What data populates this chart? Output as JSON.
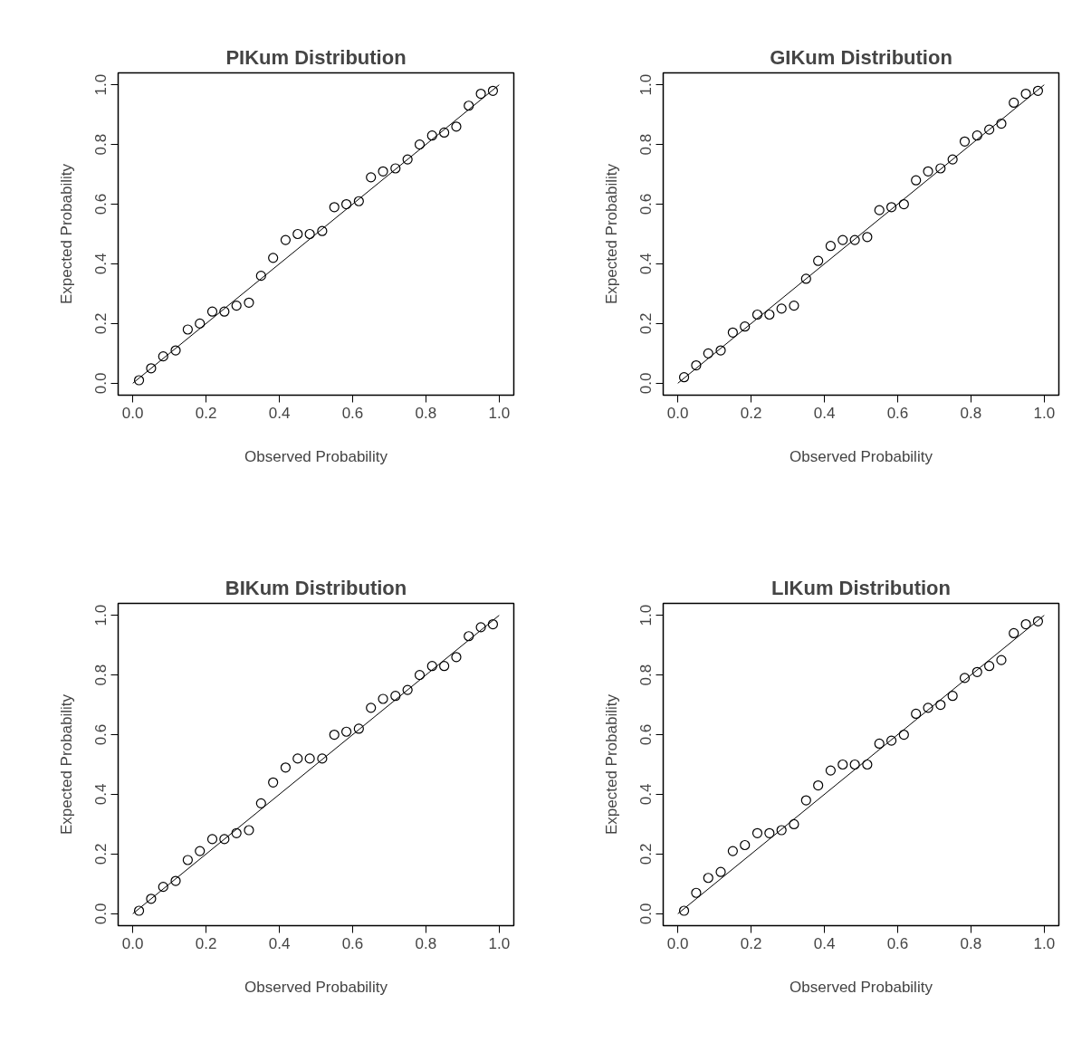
{
  "chart_data": [
    {
      "type": "scatter",
      "title": "PIKum Distribution",
      "xlabel": "Observed Probability",
      "ylabel": "Expected Probability",
      "marker": "circle",
      "xlim": [
        -0.04,
        1.04
      ],
      "ylim": [
        -0.04,
        1.04
      ],
      "xticks": [
        {
          "value": 0,
          "label": "0.0"
        },
        {
          "value": 0.2,
          "label": "0.2"
        },
        {
          "value": 0.4,
          "label": "0.4"
        },
        {
          "value": 0.6,
          "label": "0.6"
        },
        {
          "value": 0.8,
          "label": "0.8"
        },
        {
          "value": 1,
          "label": "1.0"
        }
      ],
      "yticks": [
        {
          "value": 0,
          "label": "0.0"
        },
        {
          "value": 0.2,
          "label": "0.2"
        },
        {
          "value": 0.4,
          "label": "0.4"
        },
        {
          "value": 0.6,
          "label": "0.6"
        },
        {
          "value": 0.8,
          "label": "0.8"
        },
        {
          "value": 1,
          "label": "1.0"
        }
      ],
      "x": [
        0.017,
        0.05,
        0.083,
        0.117,
        0.15,
        0.183,
        0.217,
        0.25,
        0.283,
        0.317,
        0.35,
        0.383,
        0.417,
        0.45,
        0.483,
        0.517,
        0.55,
        0.583,
        0.617,
        0.65,
        0.683,
        0.717,
        0.75,
        0.783,
        0.817,
        0.85,
        0.883,
        0.917,
        0.95,
        0.983
      ],
      "series": [
        {
          "color": "#000000",
          "values": [
            0.01,
            0.05,
            0.09,
            0.11,
            0.18,
            0.2,
            0.24,
            0.24,
            0.26,
            0.27,
            0.36,
            0.42,
            0.48,
            0.5,
            0.5,
            0.51,
            0.59,
            0.6,
            0.61,
            0.69,
            0.71,
            0.72,
            0.75,
            0.8,
            0.83,
            0.84,
            0.86,
            0.93,
            0.97,
            0.98
          ]
        },
        {
          "type": "line",
          "marker": "none",
          "color": "#000000",
          "x": [
            0,
            0.5,
            1
          ],
          "values": [
            0,
            0.5,
            1
          ]
        }
      ]
    },
    {
      "type": "scatter",
      "title": "GIKum Distribution",
      "xlabel": "Observed Probability",
      "ylabel": "Expected Probability",
      "marker": "circle",
      "xlim": [
        -0.04,
        1.04
      ],
      "ylim": [
        -0.04,
        1.04
      ],
      "xticks": [
        {
          "value": 0,
          "label": "0.0"
        },
        {
          "value": 0.2,
          "label": "0.2"
        },
        {
          "value": 0.4,
          "label": "0.4"
        },
        {
          "value": 0.6,
          "label": "0.6"
        },
        {
          "value": 0.8,
          "label": "0.8"
        },
        {
          "value": 1,
          "label": "1.0"
        }
      ],
      "yticks": [
        {
          "value": 0,
          "label": "0.0"
        },
        {
          "value": 0.2,
          "label": "0.2"
        },
        {
          "value": 0.4,
          "label": "0.4"
        },
        {
          "value": 0.6,
          "label": "0.6"
        },
        {
          "value": 0.8,
          "label": "0.8"
        },
        {
          "value": 1,
          "label": "1.0"
        }
      ],
      "x": [
        0.017,
        0.05,
        0.083,
        0.117,
        0.15,
        0.183,
        0.217,
        0.25,
        0.283,
        0.317,
        0.35,
        0.383,
        0.417,
        0.45,
        0.483,
        0.517,
        0.55,
        0.583,
        0.617,
        0.65,
        0.683,
        0.717,
        0.75,
        0.783,
        0.817,
        0.85,
        0.883,
        0.917,
        0.95,
        0.983
      ],
      "series": [
        {
          "color": "#000000",
          "values": [
            0.02,
            0.06,
            0.1,
            0.11,
            0.17,
            0.19,
            0.23,
            0.23,
            0.25,
            0.26,
            0.35,
            0.41,
            0.46,
            0.48,
            0.48,
            0.49,
            0.58,
            0.59,
            0.6,
            0.68,
            0.71,
            0.72,
            0.75,
            0.81,
            0.83,
            0.85,
            0.87,
            0.94,
            0.97,
            0.98
          ]
        },
        {
          "type": "line",
          "marker": "none",
          "color": "#000000",
          "x": [
            0,
            0.5,
            1
          ],
          "values": [
            0,
            0.5,
            1
          ]
        }
      ]
    },
    {
      "type": "scatter",
      "title": "BIKum Distribution",
      "xlabel": "Observed Probability",
      "ylabel": "Expected Probability",
      "marker": "circle",
      "xlim": [
        -0.04,
        1.04
      ],
      "ylim": [
        -0.04,
        1.04
      ],
      "xticks": [
        {
          "value": 0,
          "label": "0.0"
        },
        {
          "value": 0.2,
          "label": "0.2"
        },
        {
          "value": 0.4,
          "label": "0.4"
        },
        {
          "value": 0.6,
          "label": "0.6"
        },
        {
          "value": 0.8,
          "label": "0.8"
        },
        {
          "value": 1,
          "label": "1.0"
        }
      ],
      "yticks": [
        {
          "value": 0,
          "label": "0.0"
        },
        {
          "value": 0.2,
          "label": "0.2"
        },
        {
          "value": 0.4,
          "label": "0.4"
        },
        {
          "value": 0.6,
          "label": "0.6"
        },
        {
          "value": 0.8,
          "label": "0.8"
        },
        {
          "value": 1,
          "label": "1.0"
        }
      ],
      "x": [
        0.017,
        0.05,
        0.083,
        0.117,
        0.15,
        0.183,
        0.217,
        0.25,
        0.283,
        0.317,
        0.35,
        0.383,
        0.417,
        0.45,
        0.483,
        0.517,
        0.55,
        0.583,
        0.617,
        0.65,
        0.683,
        0.717,
        0.75,
        0.783,
        0.817,
        0.85,
        0.883,
        0.917,
        0.95,
        0.983
      ],
      "series": [
        {
          "color": "#000000",
          "values": [
            0.01,
            0.05,
            0.09,
            0.11,
            0.18,
            0.21,
            0.25,
            0.25,
            0.27,
            0.28,
            0.37,
            0.44,
            0.49,
            0.52,
            0.52,
            0.52,
            0.6,
            0.61,
            0.62,
            0.69,
            0.72,
            0.73,
            0.75,
            0.8,
            0.83,
            0.83,
            0.86,
            0.93,
            0.96,
            0.97
          ]
        },
        {
          "type": "line",
          "marker": "none",
          "color": "#000000",
          "x": [
            0,
            0.5,
            1
          ],
          "values": [
            0,
            0.5,
            1
          ]
        }
      ]
    },
    {
      "type": "scatter",
      "title": "LIKum Distribution",
      "xlabel": "Observed Probability",
      "ylabel": "Expected Probability",
      "marker": "circle",
      "xlim": [
        -0.04,
        1.04
      ],
      "ylim": [
        -0.04,
        1.04
      ],
      "xticks": [
        {
          "value": 0,
          "label": "0.0"
        },
        {
          "value": 0.2,
          "label": "0.2"
        },
        {
          "value": 0.4,
          "label": "0.4"
        },
        {
          "value": 0.6,
          "label": "0.6"
        },
        {
          "value": 0.8,
          "label": "0.8"
        },
        {
          "value": 1,
          "label": "1.0"
        }
      ],
      "yticks": [
        {
          "value": 0,
          "label": "0.0"
        },
        {
          "value": 0.2,
          "label": "0.2"
        },
        {
          "value": 0.4,
          "label": "0.4"
        },
        {
          "value": 0.6,
          "label": "0.6"
        },
        {
          "value": 0.8,
          "label": "0.8"
        },
        {
          "value": 1,
          "label": "1.0"
        }
      ],
      "x": [
        0.017,
        0.05,
        0.083,
        0.117,
        0.15,
        0.183,
        0.217,
        0.25,
        0.283,
        0.317,
        0.35,
        0.383,
        0.417,
        0.45,
        0.483,
        0.517,
        0.55,
        0.583,
        0.617,
        0.65,
        0.683,
        0.717,
        0.75,
        0.783,
        0.817,
        0.85,
        0.883,
        0.917,
        0.95,
        0.983
      ],
      "series": [
        {
          "color": "#000000",
          "values": [
            0.01,
            0.07,
            0.12,
            0.14,
            0.21,
            0.23,
            0.27,
            0.27,
            0.28,
            0.3,
            0.38,
            0.43,
            0.48,
            0.5,
            0.5,
            0.5,
            0.57,
            0.58,
            0.6,
            0.67,
            0.69,
            0.7,
            0.73,
            0.79,
            0.81,
            0.83,
            0.85,
            0.94,
            0.97,
            0.98
          ]
        },
        {
          "type": "line",
          "marker": "none",
          "color": "#000000",
          "x": [
            0,
            0.5,
            1
          ],
          "values": [
            0,
            0.5,
            1
          ]
        }
      ]
    }
  ]
}
